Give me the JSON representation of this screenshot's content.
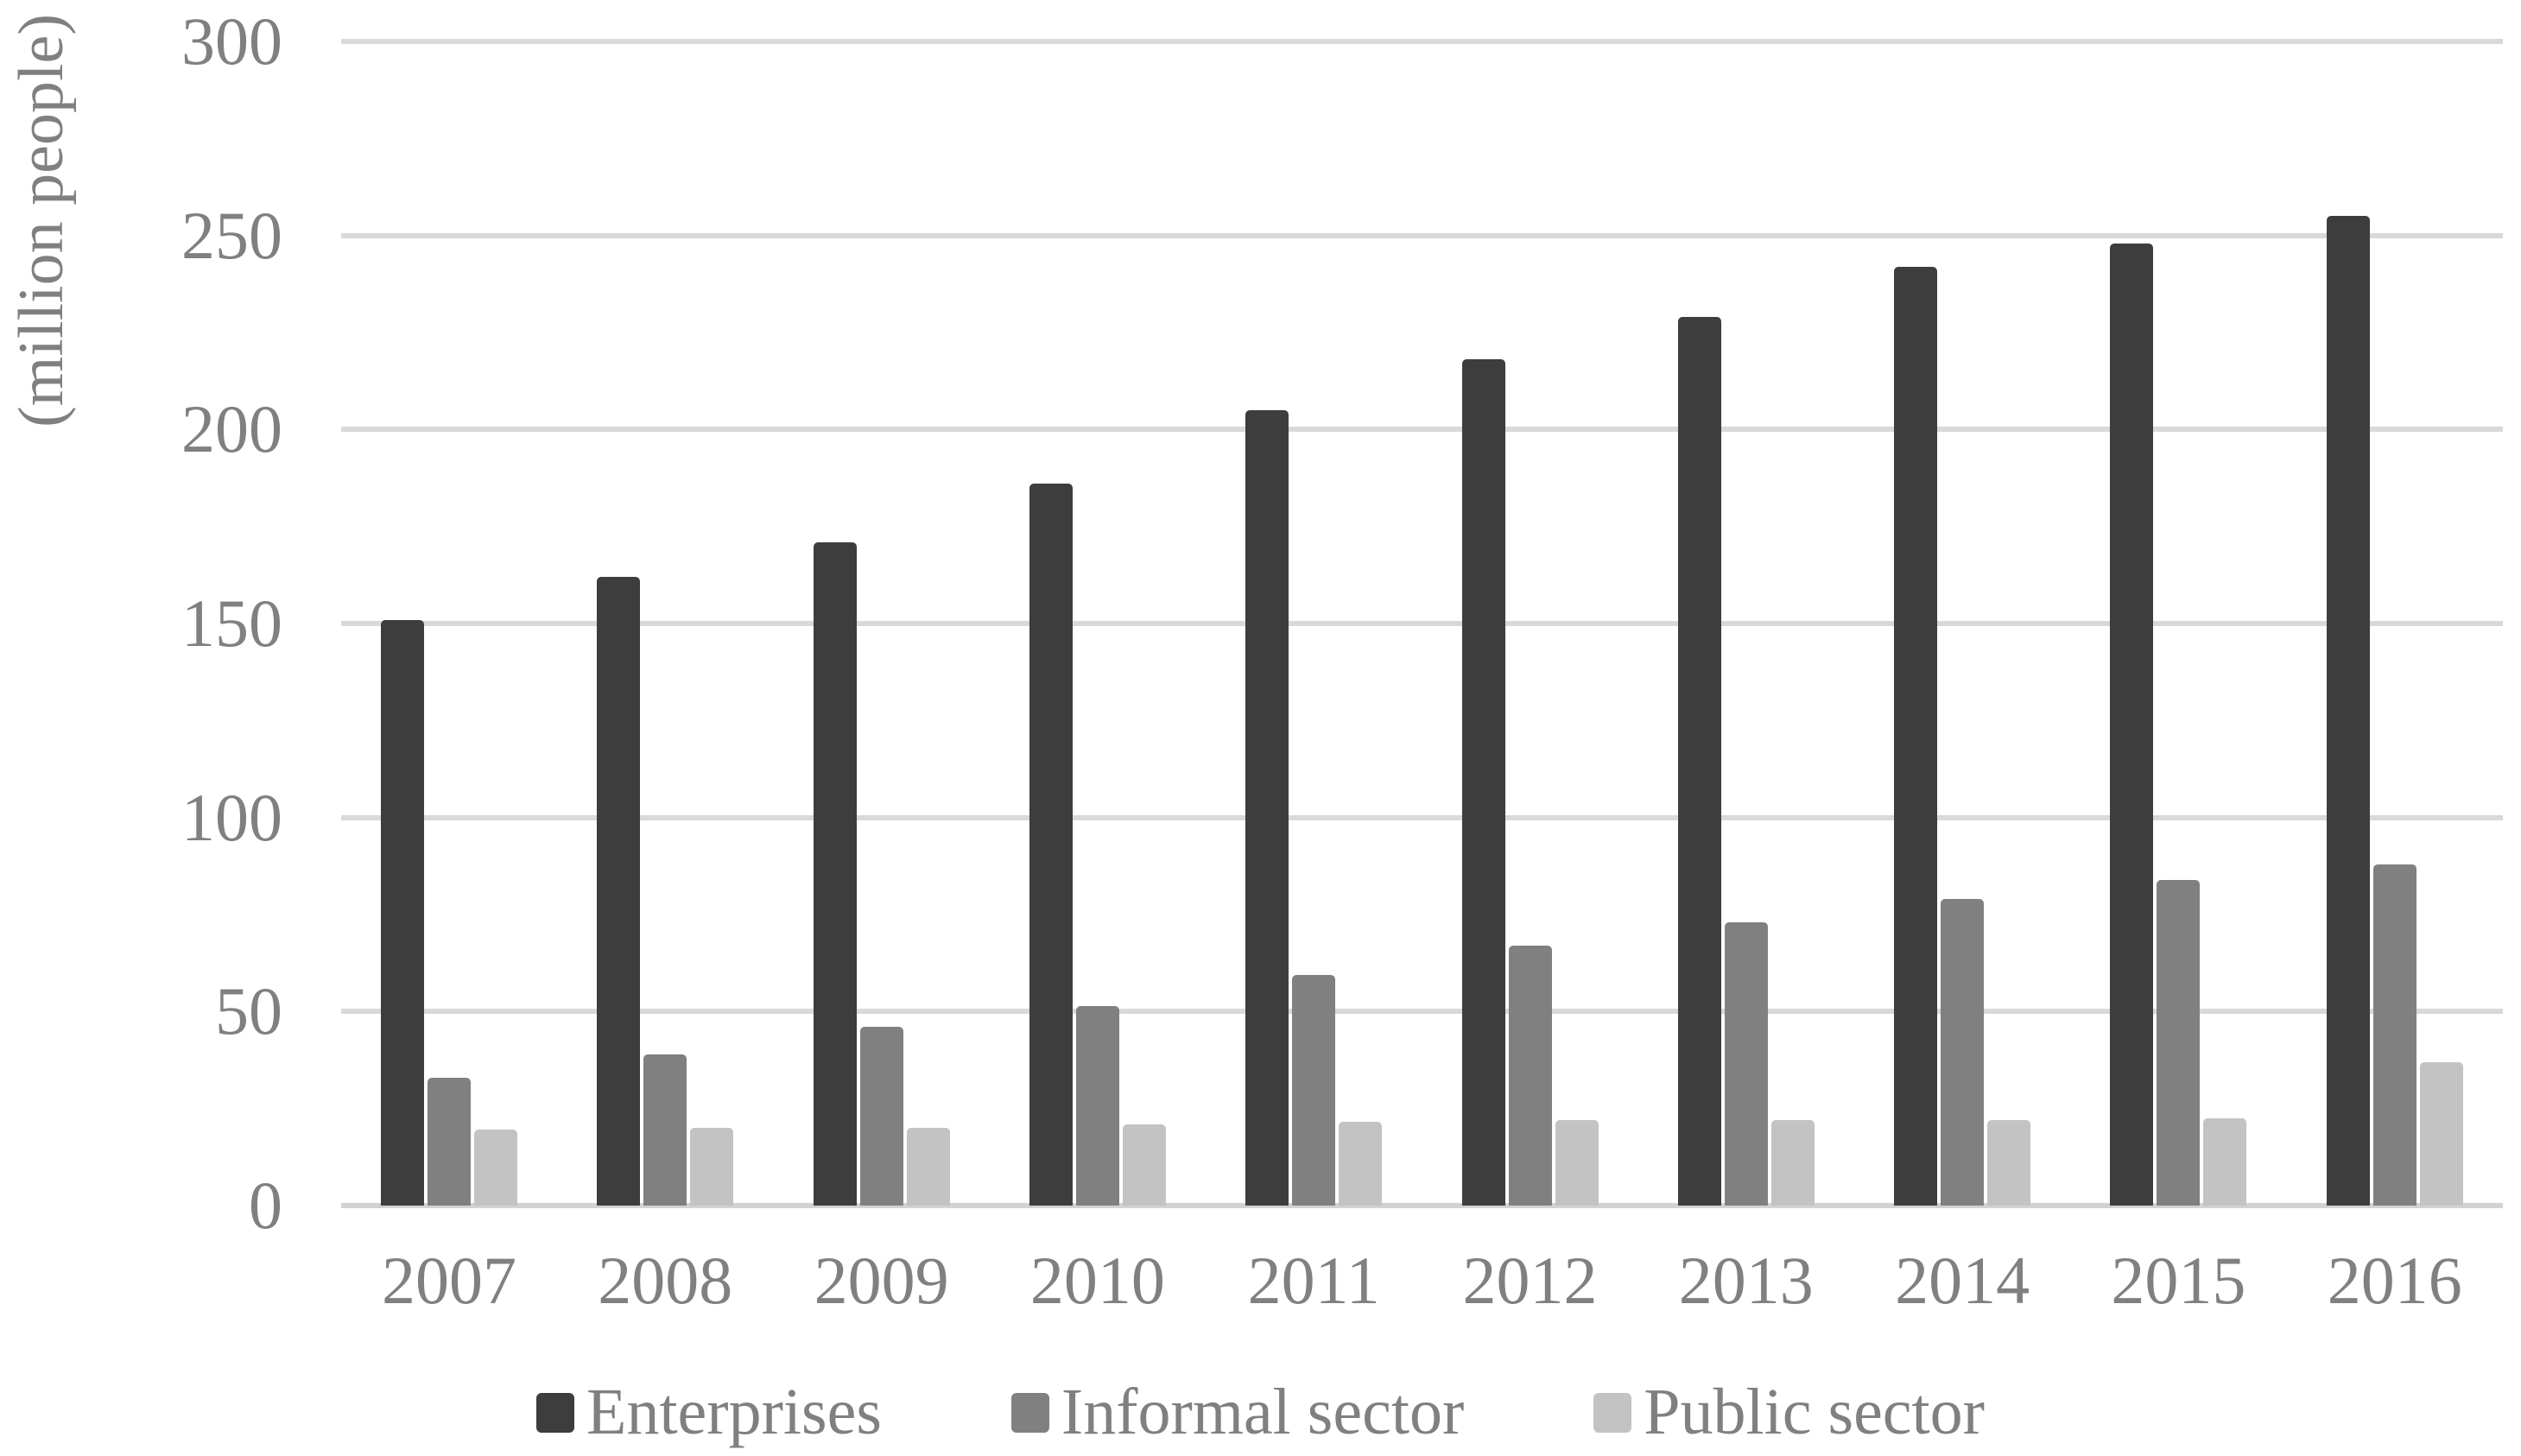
{
  "chart_data": {
    "type": "bar",
    "title": "",
    "ylabel": "(million people)",
    "xlabel": "",
    "categories": [
      "2007",
      "2008",
      "2009",
      "2010",
      "2011",
      "2012",
      "2013",
      "2014",
      "2015",
      "2016"
    ],
    "series": [
      {
        "name": "Enterprises",
        "color": "#3d3d3d",
        "values": [
          151,
          162,
          171,
          186,
          205,
          218,
          229,
          242,
          248,
          255
        ]
      },
      {
        "name": "Informal sector",
        "color": "#808080",
        "values": [
          33,
          39,
          46,
          51.5,
          59.5,
          67,
          73,
          79,
          84,
          88
        ]
      },
      {
        "name": "Public sector",
        "color": "#c3c3c3",
        "values": [
          19.5,
          20,
          20,
          21,
          21.5,
          22,
          22,
          22,
          22.5,
          37
        ]
      }
    ],
    "ylim": [
      0,
      300
    ],
    "ytick_step": 50,
    "yticks": [
      "0",
      "50",
      "100",
      "150",
      "200",
      "250",
      "300"
    ],
    "grid": true,
    "legend_position": "bottom",
    "colors": {
      "gridline": "#d9d9d9",
      "axis_line": "#d2d2d2",
      "text": "#808080",
      "background": "#ffffff"
    }
  }
}
